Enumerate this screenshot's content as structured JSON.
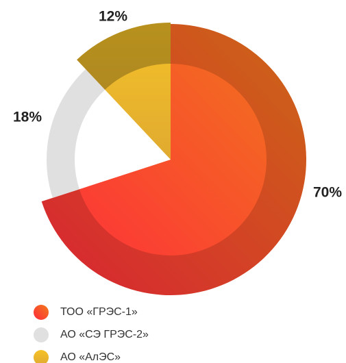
{
  "chart_data": {
    "type": "pie",
    "categories": [
      "ТОО «ГРЭС-1»",
      "АО «СЭ ГРЭС-2»",
      "АО «АлЭС»"
    ],
    "values": [
      70,
      18,
      12
    ],
    "value_labels": [
      "70%",
      "18%",
      "12%"
    ],
    "colors": [
      "#f07a1a",
      "#e0e0e0",
      "#f5c228"
    ]
  }
}
